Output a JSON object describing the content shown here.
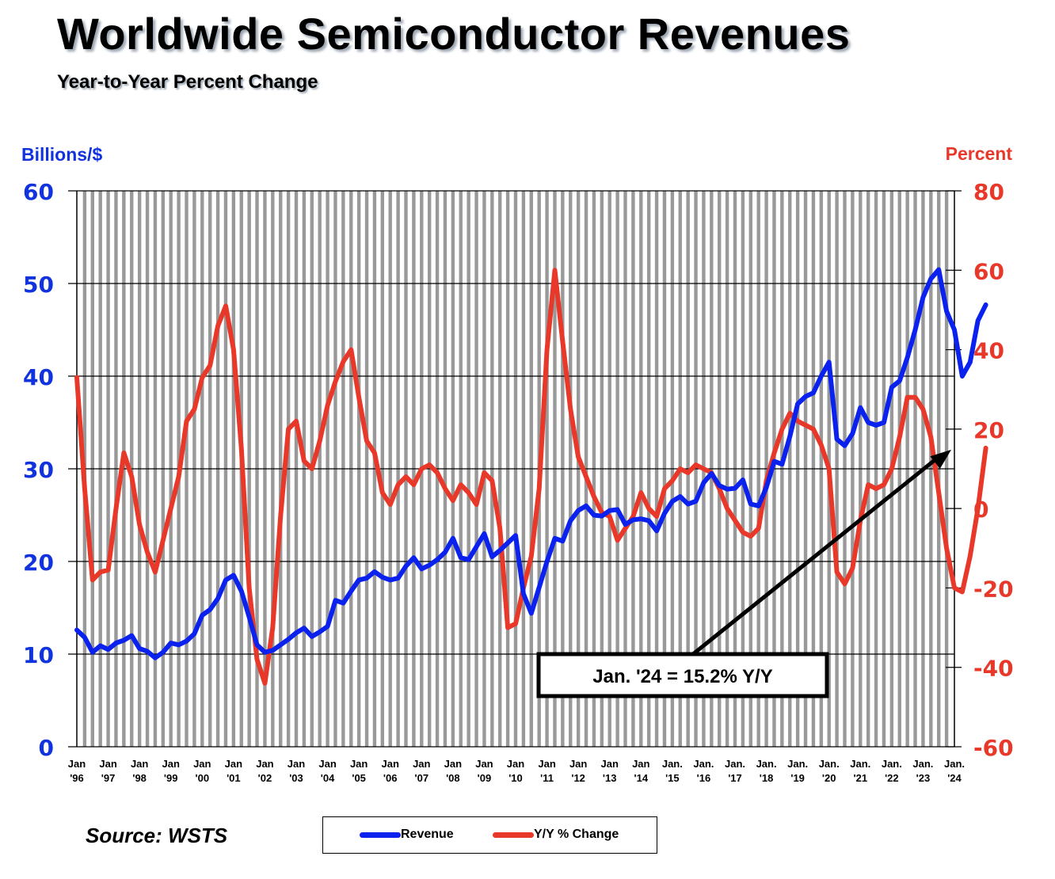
{
  "title": "Worldwide Semiconductor Revenues",
  "subtitle": "Year-to-Year Percent Change",
  "left_axis_title": "Billions/$",
  "right_axis_title": "Percent",
  "source": "Source: WSTS",
  "annotation": "Jan. '24 = 15.2% Y/Y",
  "colors": {
    "revenue": "#0b22ee",
    "yoy": "#e8382a",
    "left_axis": "#1133dd",
    "right_axis": "#e8382a",
    "stripe": "#999999"
  },
  "legend": [
    {
      "label": "Revenue",
      "series": "revenue"
    },
    {
      "label": "Y/Y % Change",
      "series": "yoy"
    }
  ],
  "chart_data": {
    "type": "line",
    "title": "Worldwide Semiconductor Revenues",
    "subtitle": "Year-to-Year Percent Change",
    "xlabel": "",
    "ylabel": "Billions/$",
    "y2label": "Percent",
    "ylim": [
      0,
      60
    ],
    "y2lim": [
      -60,
      80
    ],
    "yticks": [
      0,
      10,
      20,
      30,
      40,
      50,
      60
    ],
    "y2ticks": [
      -60,
      -40,
      -20,
      0,
      20,
      40,
      60,
      80
    ],
    "grid": true,
    "legend_position": "bottom-center",
    "x_tick_labels": [
      [
        "Jan",
        "'96"
      ],
      [
        "Jan",
        "'97"
      ],
      [
        "Jan",
        "'98"
      ],
      [
        "Jan",
        "'99"
      ],
      [
        "Jan",
        "'00"
      ],
      [
        "Jan",
        "'01"
      ],
      [
        "Jan",
        "'02"
      ],
      [
        "Jan",
        "'03"
      ],
      [
        "Jan",
        "'04"
      ],
      [
        "Jan",
        "'05"
      ],
      [
        "Jan",
        "'06"
      ],
      [
        "Jan",
        "'07"
      ],
      [
        "Jan",
        "'08"
      ],
      [
        "Jan",
        "'09"
      ],
      [
        "Jan",
        "'10"
      ],
      [
        "Jan",
        "'11"
      ],
      [
        "Jan",
        "'12"
      ],
      [
        "Jan",
        "'13"
      ],
      [
        "Jan",
        "'14"
      ],
      [
        "Jan.",
        "'15"
      ],
      [
        "Jan.",
        "'16"
      ],
      [
        "Jan.",
        "'17"
      ],
      [
        "Jan.",
        "'18"
      ],
      [
        "Jan.",
        "'19"
      ],
      [
        "Jan.",
        "'20"
      ],
      [
        "Jan.",
        "'21"
      ],
      [
        "Jan.",
        "'22"
      ],
      [
        "Jan.",
        "'23"
      ],
      [
        "Jan.",
        "'24"
      ]
    ],
    "x_start": "1996-01",
    "x_end": "2024-01",
    "x_step": "quarter",
    "series": [
      {
        "name": "Revenue",
        "axis": "left",
        "values": [
          12.6,
          11.8,
          10.2,
          10.9,
          10.5,
          11.2,
          11.5,
          12.0,
          10.6,
          10.3,
          9.6,
          10.2,
          11.2,
          11.0,
          11.4,
          12.2,
          14.2,
          14.8,
          16.0,
          18.0,
          18.5,
          16.8,
          14.0,
          11.0,
          10.2,
          10.4,
          11.0,
          11.6,
          12.3,
          12.8,
          11.9,
          12.4,
          13.0,
          15.8,
          15.5,
          16.8,
          18.0,
          18.2,
          18.9,
          18.3,
          18.0,
          18.2,
          19.5,
          20.4,
          19.2,
          19.6,
          20.2,
          21.0,
          22.5,
          20.4,
          20.2,
          21.6,
          23.0,
          20.5,
          21.2,
          22.0,
          22.8,
          16.5,
          14.4,
          17.2,
          20.0,
          22.5,
          22.2,
          24.4,
          25.5,
          26.0,
          25.0,
          24.9,
          25.5,
          25.6,
          24.0,
          24.5,
          24.6,
          24.4,
          23.3,
          25.2,
          26.5,
          27.0,
          26.2,
          26.5,
          28.5,
          29.5,
          28.2,
          27.8,
          27.9,
          28.8,
          26.2,
          26.0,
          28.0,
          30.8,
          30.5,
          33.5,
          37.0,
          37.8,
          38.2,
          40.0,
          41.5,
          33.2,
          32.5,
          33.8,
          36.6,
          35.0,
          34.7,
          35.0,
          38.8,
          39.5,
          42.0,
          45.0,
          48.5,
          50.5,
          51.5,
          47.0,
          45.0,
          40.0,
          41.5,
          46.0,
          47.7
        ]
      },
      {
        "name": "Y/Y % Change",
        "axis": "right",
        "values": [
          33.0,
          5.0,
          -18.0,
          -16.0,
          -15.5,
          0.0,
          14.0,
          8.0,
          -4.0,
          -11.0,
          -16.0,
          -8.0,
          0.0,
          8.0,
          22.0,
          25.0,
          33.0,
          36.0,
          46.0,
          51.0,
          40.0,
          15.0,
          -20.0,
          -38.0,
          -44.0,
          -30.0,
          -2.0,
          20.0,
          22.0,
          12.0,
          10.0,
          17.0,
          26.0,
          32.0,
          37.0,
          40.0,
          28.0,
          17.0,
          14.0,
          4.0,
          1.0,
          6.0,
          8.0,
          6.0,
          10.0,
          11.0,
          9.0,
          5.0,
          2.0,
          6.0,
          4.0,
          1.0,
          9.0,
          7.0,
          -5.0,
          -30.0,
          -29.0,
          -20.0,
          -12.0,
          5.0,
          40.0,
          60.0,
          42.0,
          25.0,
          13.0,
          8.0,
          3.0,
          -1.0,
          -2.0,
          -8.0,
          -5.0,
          -2.0,
          4.0,
          0.0,
          -2.0,
          5.0,
          7.0,
          10.0,
          9.0,
          11.0,
          10.0,
          9.0,
          5.0,
          0.0,
          -3.0,
          -6.0,
          -7.0,
          -5.0,
          7.0,
          14.0,
          20.0,
          24.0,
          22.0,
          21.0,
          20.0,
          16.0,
          10.0,
          -16.0,
          -19.0,
          -15.0,
          -3.0,
          6.0,
          5.0,
          6.0,
          10.0,
          18.0,
          28.0,
          28.0,
          25.0,
          18.0,
          4.0,
          -10.0,
          -20.0,
          -21.0,
          -12.0,
          0.0,
          15.2
        ]
      }
    ],
    "annotations": [
      {
        "text": "Jan. '24 = 15.2% Y/Y",
        "points_to": {
          "x": "2024-01",
          "series": "Y/Y % Change",
          "value": 15.2
        }
      }
    ]
  }
}
